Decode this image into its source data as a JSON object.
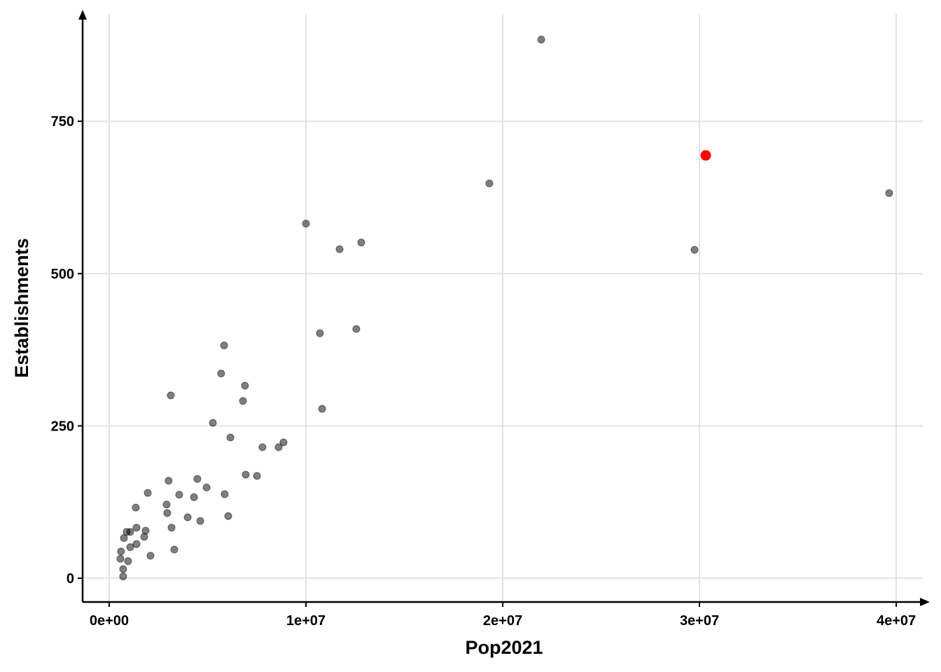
{
  "chart_data": {
    "type": "scatter",
    "x_label": "Pop2021",
    "y_label": "Establishments",
    "xlim": [
      -1350000,
      41350000
    ],
    "ylim": [
      -39,
      926
    ],
    "xticks": [
      {
        "value": 0,
        "label": "0e+00"
      },
      {
        "value": 10000000,
        "label": "1e+07"
      },
      {
        "value": 20000000,
        "label": "2e+07"
      },
      {
        "value": 30000000,
        "label": "3e+07"
      },
      {
        "value": 40000000,
        "label": "4e+07"
      }
    ],
    "yticks": [
      0,
      250,
      500,
      750
    ],
    "grid": true,
    "series": [
      {
        "color": "#000000",
        "opacity": 0.5,
        "x": [
          21960000,
          19320000,
          39640000,
          10000000,
          11710000,
          12810000,
          29750000,
          10710000,
          12560000,
          10820000,
          5840000,
          5690000,
          6900000,
          6800000,
          3130000,
          5270000,
          6160000,
          7790000,
          8860000,
          8610000,
          6940000,
          7510000,
          3020000,
          4480000,
          4950000,
          1960000,
          3560000,
          4310000,
          5870000,
          1350000,
          2920000,
          2950000,
          3990000,
          4630000,
          6050000,
          3170000,
          1390000,
          1850000,
          890000,
          1070000,
          1780000,
          750000,
          1390000,
          1070000,
          3310000,
          600000,
          2100000,
          570000,
          960000,
          710000,
          710000
        ],
        "y": [
          884,
          648,
          632,
          582,
          540,
          551,
          539,
          402,
          409,
          278,
          382,
          336,
          316,
          291,
          300,
          255,
          231,
          215,
          223,
          215,
          170,
          168,
          160,
          163,
          149,
          140,
          137,
          133,
          138,
          116,
          121,
          107,
          100,
          94,
          102,
          83,
          83,
          78,
          76,
          76,
          68,
          66,
          56,
          51,
          47,
          44,
          37,
          32,
          28,
          15,
          3
        ]
      },
      {
        "color": "#ff0000",
        "opacity": 1,
        "x": [
          30320000
        ],
        "y": [
          694
        ]
      }
    ]
  }
}
